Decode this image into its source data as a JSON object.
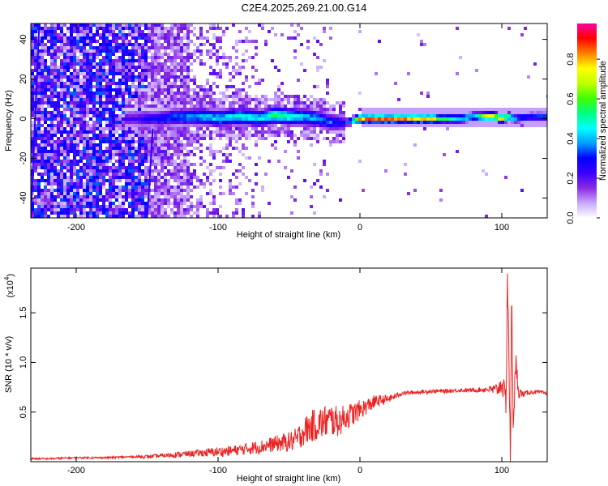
{
  "title": "C2E4.2025.269.21.00.G14",
  "chart_data": [
    {
      "type": "heatmap",
      "xlabel": "Height of straight line (km)",
      "ylabel": "Frequency (Hz)",
      "xlim": [
        -232,
        132
      ],
      "ylim": [
        -50,
        48
      ],
      "x_ticks": [
        "-200",
        "-100",
        "0",
        "100"
      ],
      "y_ticks": [
        "40",
        "20",
        "0",
        "-20",
        "-40"
      ],
      "colorbar": {
        "label": "Normalized spectral amplitude",
        "range": [
          0,
          0.98
        ],
        "ticks": [
          "0.0",
          "0.2",
          "0.4",
          "0.6",
          "0.8"
        ],
        "colors": [
          "#ffffff",
          "#c8a8ff",
          "#8a2be2",
          "#3a00ff",
          "#0000ff",
          "#00a0ff",
          "#00ffff",
          "#00ff80",
          "#40ff00",
          "#c0ff00",
          "#ffff00",
          "#ff8000",
          "#ff0000",
          "#ff00a0"
        ]
      },
      "ridge": {
        "x": [
          -160,
          -150,
          -140,
          -130,
          -120,
          -110,
          -100,
          -90,
          -80,
          -70,
          -60,
          -50,
          -40,
          -30,
          -20,
          -10,
          0,
          10,
          20,
          30,
          40,
          50,
          60,
          70,
          80,
          90,
          95,
          100,
          105,
          110,
          120,
          130
        ],
        "y": [
          0,
          0,
          0,
          1,
          1,
          1,
          0,
          1,
          1,
          0,
          2,
          1,
          1,
          0,
          -2,
          -2,
          0,
          0,
          0,
          0,
          0,
          0,
          0,
          0,
          1,
          1,
          1,
          0,
          1,
          0,
          1,
          1
        ],
        "amplitude": [
          0.25,
          0.3,
          0.35,
          0.4,
          0.45,
          0.5,
          0.5,
          0.55,
          0.55,
          0.55,
          0.6,
          0.6,
          0.5,
          0.45,
          0.4,
          0.3,
          0.95,
          0.95,
          0.95,
          0.95,
          0.95,
          0.9,
          0.6,
          0.55,
          0.55,
          0.9,
          0.95,
          0.9,
          0.7,
          0.45,
          0.4,
          0.4
        ]
      }
    },
    {
      "type": "line",
      "xlabel": "Height of straight line (km)",
      "ylabel": "SNR (10 * v/v)",
      "scale_label": "(x10",
      "scale_exp": "4",
      "xlim": [
        -232,
        132
      ],
      "ylim": [
        0,
        1.95
      ],
      "x_ticks": [
        "-200",
        "-100",
        "0",
        "100"
      ],
      "y_ticks": [
        "0.5",
        "1.0",
        "1.5"
      ],
      "color": "#ee2222",
      "series": [
        {
          "x": [
            -232,
            -220,
            -200,
            -180,
            -160,
            -150,
            -140,
            -130,
            -120,
            -110,
            -100,
            -90,
            -80,
            -70,
            -60,
            -50,
            -45,
            -40,
            -35,
            -30,
            -25,
            -20,
            -15,
            -10,
            -5,
            0,
            5,
            10,
            15,
            20,
            25,
            30,
            40,
            50,
            60,
            70,
            80,
            90,
            95,
            98,
            100,
            103,
            104,
            105,
            106,
            107,
            108,
            110,
            112,
            115,
            120,
            125,
            132
          ],
          "y": [
            0.03,
            0.03,
            0.04,
            0.04,
            0.05,
            0.05,
            0.06,
            0.07,
            0.08,
            0.09,
            0.1,
            0.11,
            0.13,
            0.15,
            0.18,
            0.2,
            0.22,
            0.3,
            0.35,
            0.38,
            0.4,
            0.42,
            0.4,
            0.45,
            0.48,
            0.52,
            0.56,
            0.6,
            0.62,
            0.63,
            0.66,
            0.69,
            0.7,
            0.71,
            0.71,
            0.72,
            0.72,
            0.73,
            0.72,
            0.74,
            0.8,
            0.6,
            1.9,
            1.1,
            0.05,
            1.6,
            0.45,
            0.95,
            0.7,
            0.68,
            0.7,
            0.7,
            0.69
          ],
          "noise": [
            0.01,
            0.01,
            0.01,
            0.01,
            0.01,
            0.02,
            0.02,
            0.03,
            0.03,
            0.04,
            0.05,
            0.05,
            0.06,
            0.07,
            0.08,
            0.1,
            0.12,
            0.14,
            0.16,
            0.17,
            0.17,
            0.17,
            0.15,
            0.13,
            0.12,
            0.1,
            0.08,
            0.07,
            0.05,
            0.04,
            0.03,
            0.02,
            0.02,
            0.02,
            0.02,
            0.02,
            0.02,
            0.03,
            0.06,
            0.08,
            0.1,
            0.15,
            0.2,
            0.2,
            0.1,
            0.25,
            0.15,
            0.15,
            0.06,
            0.03,
            0.02,
            0.02,
            0.02
          ]
        }
      ]
    }
  ]
}
